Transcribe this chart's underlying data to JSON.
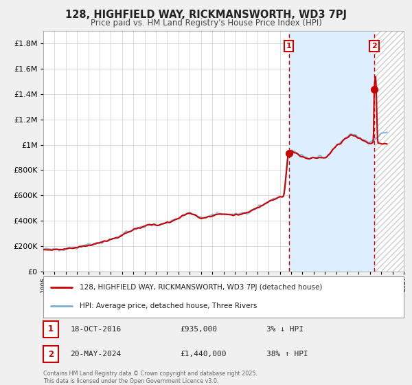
{
  "title": "128, HIGHFIELD WAY, RICKMANSWORTH, WD3 7PJ",
  "subtitle": "Price paid vs. HM Land Registry's House Price Index (HPI)",
  "background_color": "#f0f0f0",
  "plot_background_color": "#ffffff",
  "grid_color": "#cccccc",
  "hpi_color": "#7bafd4",
  "price_color": "#cc0000",
  "shade_color": "#ddeeff",
  "marker1_date": 2016.8,
  "marker1_price": 935000,
  "marker2_date": 2024.38,
  "marker2_price": 1440000,
  "annotation1": "18-OCT-2016",
  "annotation1_price": "£935,000",
  "annotation1_hpi": "3% ↓ HPI",
  "annotation2": "20-MAY-2024",
  "annotation2_price": "£1,440,000",
  "annotation2_hpi": "38% ↑ HPI",
  "legend1": "128, HIGHFIELD WAY, RICKMANSWORTH, WD3 7PJ (detached house)",
  "legend2": "HPI: Average price, detached house, Three Rivers",
  "footer": "Contains HM Land Registry data © Crown copyright and database right 2025.\nThis data is licensed under the Open Government Licence v3.0.",
  "ylim_max": 1900000,
  "xmin": 1995,
  "xmax": 2027
}
